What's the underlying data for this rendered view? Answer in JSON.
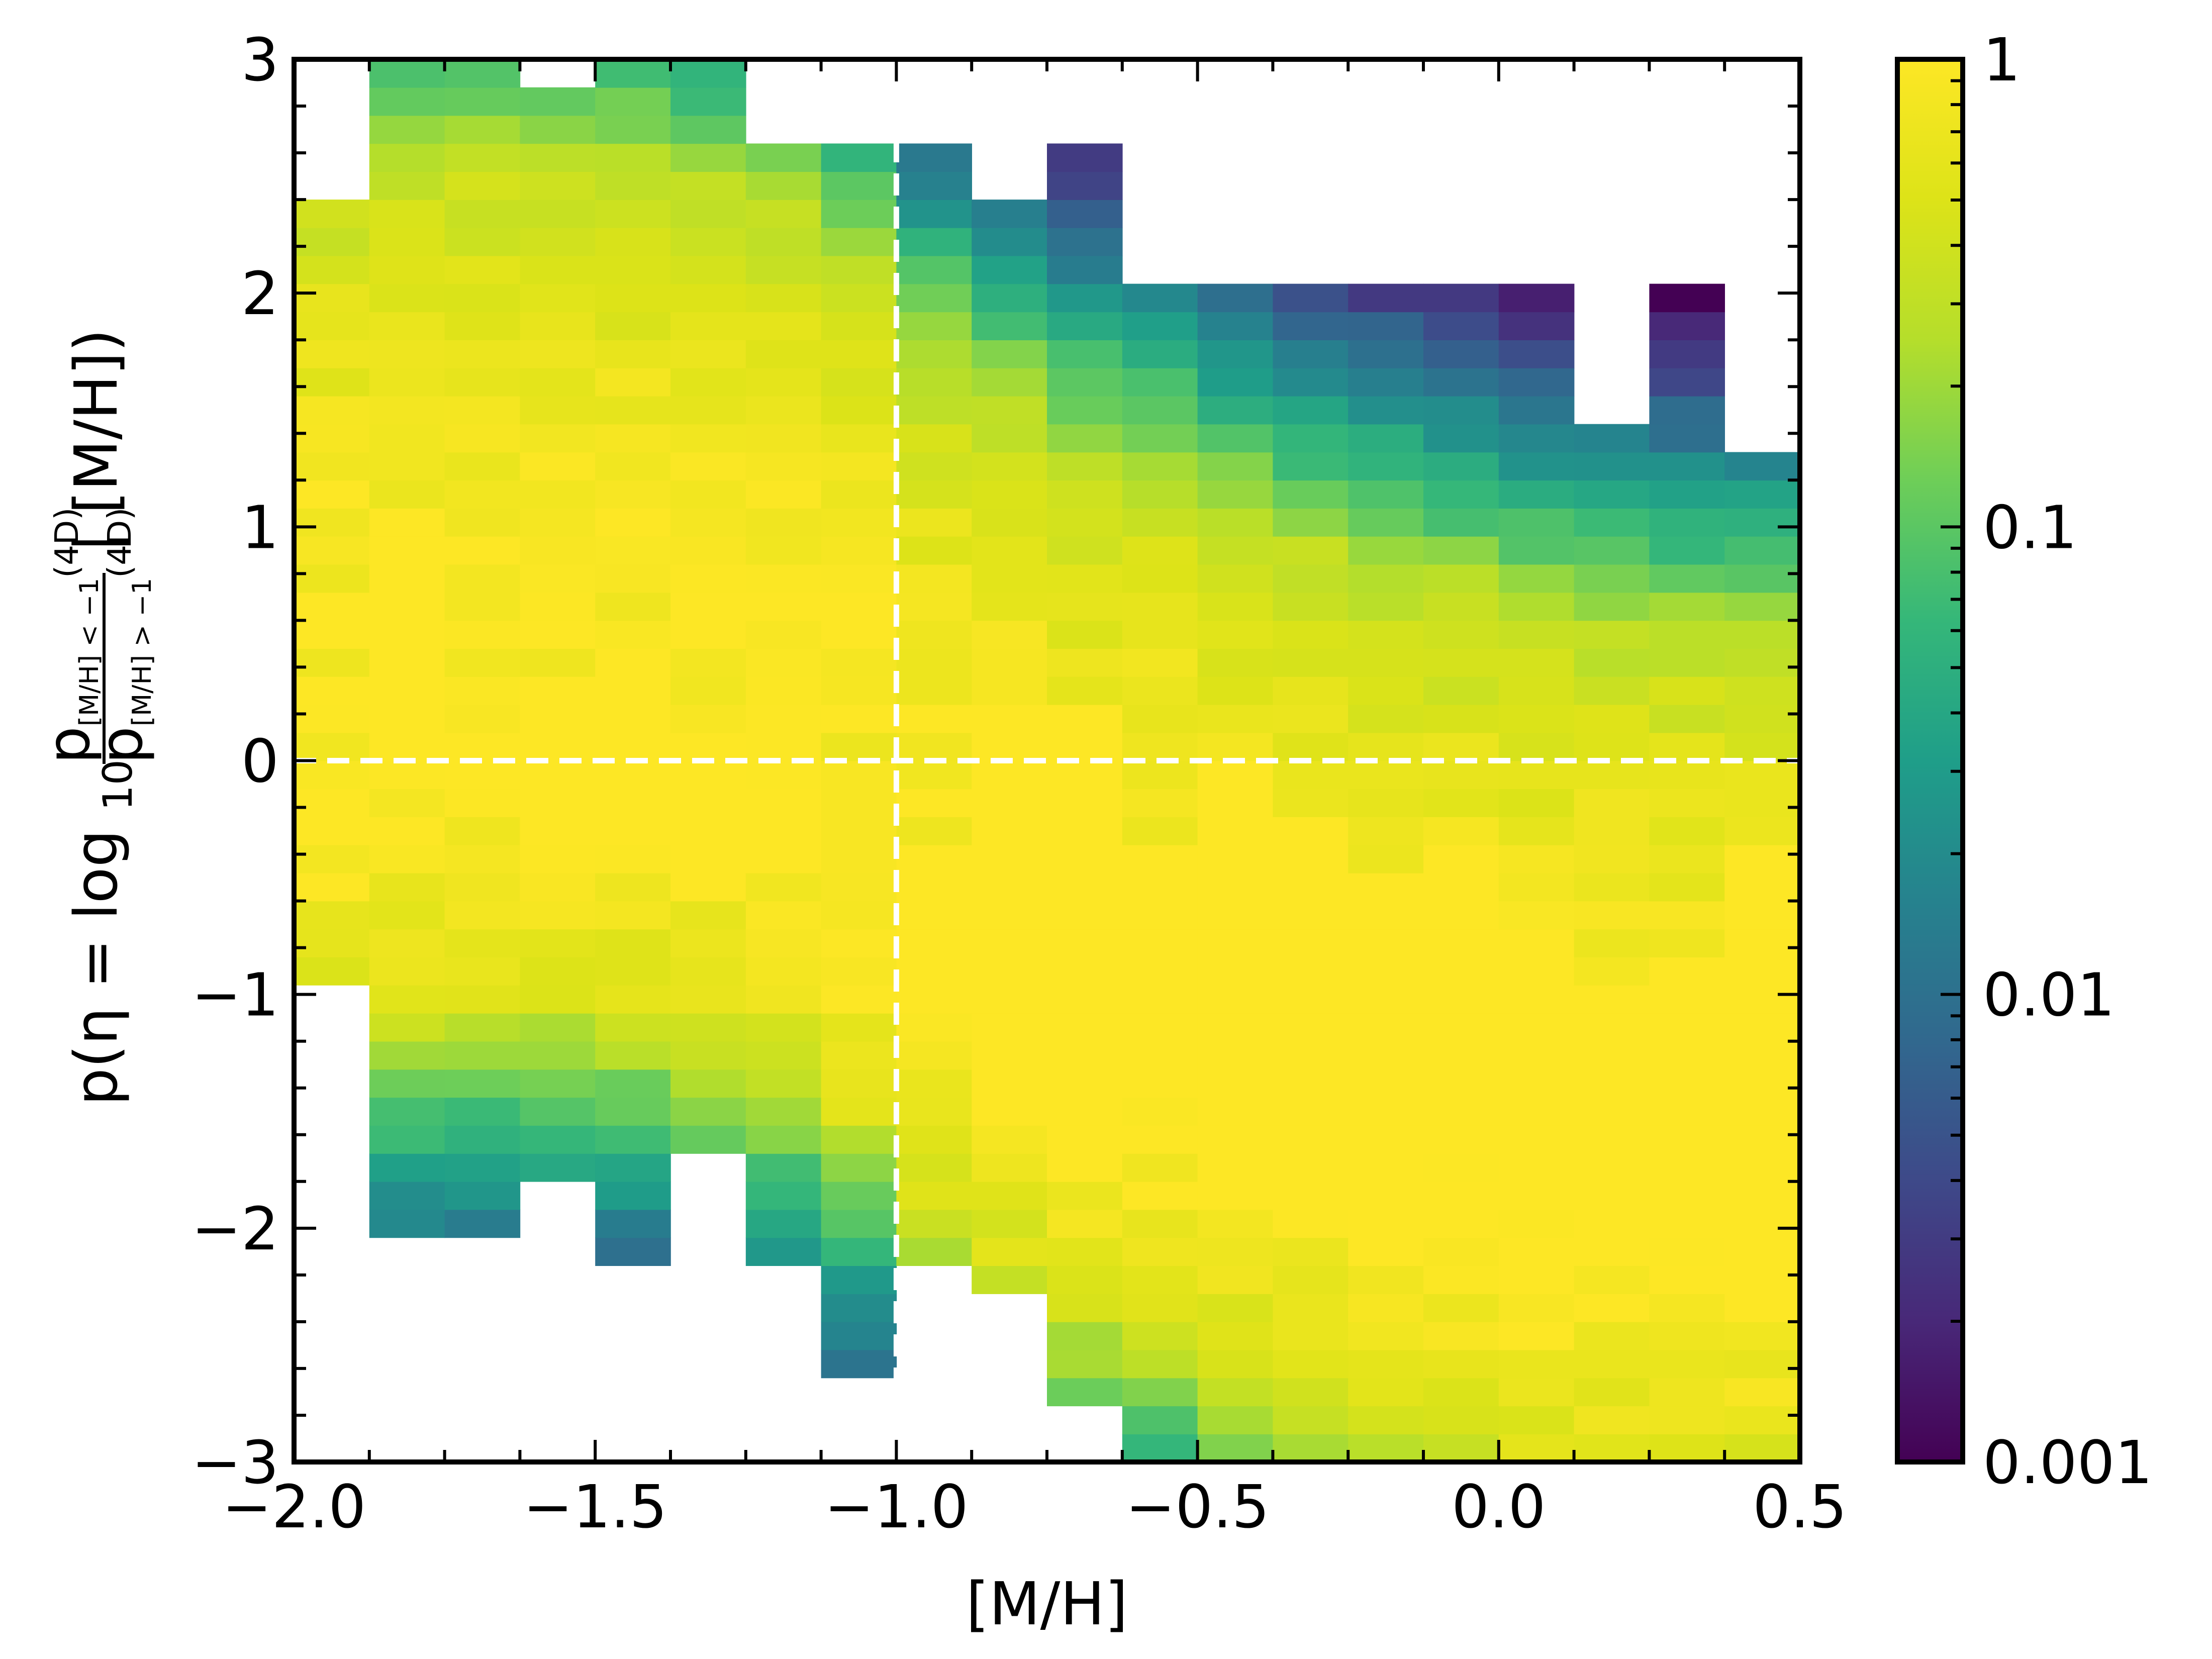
{
  "chart_data": {
    "type": "heatmap",
    "title": "",
    "xlabel": "[M/H]",
    "ylabel": {
      "prefix": "p(η = log",
      "sub10": "10",
      "num": "p",
      "num_sub": "[M/H] < −1",
      "num_sup": "(4D)",
      "den": "p",
      "den_sub": "[M/H] > −1",
      "den_sup": "(4D)",
      "suffix": "| [M/H])"
    },
    "xlim": [
      -2.0,
      0.5
    ],
    "ylim": [
      -3,
      3
    ],
    "xticks": [
      -2.0,
      -1.5,
      -1.0,
      -0.5,
      0.0,
      0.5
    ],
    "xtick_labels": [
      "−2.0",
      "−1.5",
      "−1.0",
      "−0.5",
      "0.0",
      "0.5"
    ],
    "yticks": [
      -3,
      -2,
      -1,
      0,
      1,
      2,
      3
    ],
    "ytick_labels": [
      "−3",
      "−2",
      "−1",
      "0",
      "1",
      "2",
      "3"
    ],
    "x_bin_edges": [
      -2.0,
      -1.875,
      -1.75,
      -1.625,
      -1.5,
      -1.375,
      -1.25,
      -1.125,
      -1.0,
      -0.875,
      -0.75,
      -0.625,
      -0.5,
      -0.375,
      -0.25,
      -0.125,
      0.0,
      0.125,
      0.25,
      0.375,
      0.5
    ],
    "y_bin_width": 0.12,
    "colormap": "viridis",
    "color_scale": "log",
    "colorbar": {
      "range": [
        0.001,
        1
      ],
      "ticks": [
        0.001,
        0.01,
        0.1,
        1
      ],
      "tick_labels": [
        "0.001",
        "0.01",
        "0.1",
        "1"
      ]
    },
    "reference_lines": [
      {
        "orientation": "horizontal",
        "y": 0,
        "style": "dashed",
        "color": "#ffffff"
      },
      {
        "orientation": "vertical",
        "x": -1.0,
        "style": "dashed",
        "color": "#ffffff"
      }
    ],
    "columns": [
      {
        "x_center": -1.9375,
        "min_eta": -1.0,
        "max_eta": 2.4
      },
      {
        "x_center": -1.8125,
        "min_eta": -2.0,
        "max_eta": 3.0
      },
      {
        "x_center": -1.6875,
        "min_eta": -2.0,
        "max_eta": 3.0
      },
      {
        "x_center": -1.5625,
        "min_eta": -1.8,
        "max_eta": 2.9
      },
      {
        "x_center": -1.4375,
        "min_eta": -2.1,
        "max_eta": 3.0
      },
      {
        "x_center": -1.3125,
        "min_eta": -1.7,
        "max_eta": 3.0
      },
      {
        "x_center": -1.1875,
        "min_eta": -2.2,
        "max_eta": 2.7
      },
      {
        "x_center": -1.0625,
        "min_eta": -2.6,
        "max_eta": 2.7
      },
      {
        "x_center": -0.9375,
        "min_eta": -2.2,
        "max_eta": 2.7
      },
      {
        "x_center": -0.8125,
        "min_eta": -2.3,
        "max_eta": 2.4
      },
      {
        "x_center": -0.6875,
        "min_eta": -2.7,
        "max_eta": 2.6
      },
      {
        "x_center": -0.5625,
        "min_eta": -3.0,
        "max_eta": 2.1
      },
      {
        "x_center": -0.4375,
        "min_eta": -3.0,
        "max_eta": 2.1
      },
      {
        "x_center": -0.3125,
        "min_eta": -3.0,
        "max_eta": 2.0
      },
      {
        "x_center": -0.1875,
        "min_eta": -3.0,
        "max_eta": 2.0
      },
      {
        "x_center": -0.0625,
        "min_eta": -3.0,
        "max_eta": 2.0
      },
      {
        "x_center": 0.0625,
        "min_eta": -3.0,
        "max_eta": 2.0
      },
      {
        "x_center": 0.1875,
        "min_eta": -3.0,
        "max_eta": 1.5
      },
      {
        "x_center": 0.3125,
        "min_eta": -3.0,
        "max_eta": 2.0
      },
      {
        "x_center": 0.4375,
        "min_eta": -3.0,
        "max_eta": 1.3
      }
    ],
    "peak_eta_by_column": [
      0.7,
      0.75,
      0.8,
      0.8,
      0.75,
      0.65,
      0.55,
      0.3,
      -0.1,
      -0.3,
      -0.5,
      -0.6,
      -0.75,
      -0.9,
      -1.0,
      -1.1,
      -1.2,
      -1.25,
      -1.3,
      -1.3
    ]
  }
}
